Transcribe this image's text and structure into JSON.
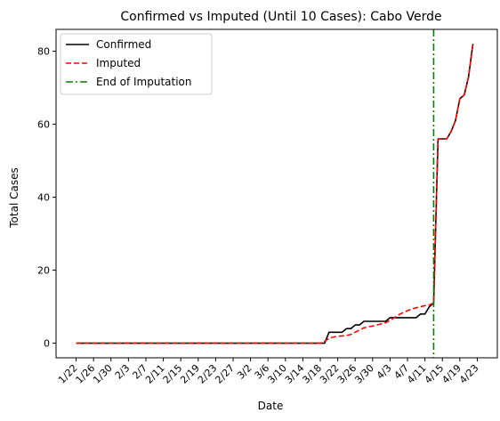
{
  "chart_data": {
    "type": "line",
    "title": "Confirmed vs Imputed (Until 10 Cases): Cabo Verde",
    "xlabel": "Date",
    "ylabel": "Total Cases",
    "x_start": "2020-01-22",
    "x_end": "2020-04-23",
    "xticks": [
      "1/22",
      "1/26",
      "1/30",
      "2/3",
      "2/7",
      "2/11",
      "2/15",
      "2/19",
      "2/23",
      "2/27",
      "3/2",
      "3/6",
      "3/10",
      "3/14",
      "3/18",
      "3/22",
      "3/26",
      "3/30",
      "4/3",
      "4/7",
      "4/11",
      "4/15",
      "4/19",
      "4/23"
    ],
    "yticks": [
      0,
      20,
      40,
      60,
      80
    ],
    "ylim": [
      -4,
      86
    ],
    "grid": false,
    "legend_position": "upper-left",
    "series": [
      {
        "name": "Confirmed",
        "color": "#000000",
        "style": "solid",
        "points": [
          [
            "2020-01-22",
            0
          ],
          [
            "2020-03-18",
            0
          ],
          [
            "2020-03-19",
            0
          ],
          [
            "2020-03-20",
            3
          ],
          [
            "2020-03-21",
            3
          ],
          [
            "2020-03-22",
            3
          ],
          [
            "2020-03-23",
            3
          ],
          [
            "2020-03-24",
            4
          ],
          [
            "2020-03-25",
            4
          ],
          [
            "2020-03-26",
            5
          ],
          [
            "2020-03-27",
            5
          ],
          [
            "2020-03-28",
            6
          ],
          [
            "2020-03-29",
            6
          ],
          [
            "2020-03-30",
            6
          ],
          [
            "2020-03-31",
            6
          ],
          [
            "2020-04-01",
            6
          ],
          [
            "2020-04-02",
            6
          ],
          [
            "2020-04-03",
            7
          ],
          [
            "2020-04-04",
            7
          ],
          [
            "2020-04-05",
            7
          ],
          [
            "2020-04-06",
            7
          ],
          [
            "2020-04-07",
            7
          ],
          [
            "2020-04-08",
            7
          ],
          [
            "2020-04-09",
            7
          ],
          [
            "2020-04-10",
            8
          ],
          [
            "2020-04-11",
            8
          ],
          [
            "2020-04-12",
            10
          ],
          [
            "2020-04-13",
            11
          ],
          [
            "2020-04-14",
            56
          ],
          [
            "2020-04-15",
            56
          ],
          [
            "2020-04-16",
            56
          ],
          [
            "2020-04-17",
            58
          ],
          [
            "2020-04-18",
            61
          ],
          [
            "2020-04-19",
            67
          ],
          [
            "2020-04-20",
            68
          ],
          [
            "2020-04-21",
            73
          ],
          [
            "2020-04-22",
            82
          ]
        ]
      },
      {
        "name": "Imputed",
        "color": "#ff0000",
        "style": "dashed",
        "points": [
          [
            "2020-01-22",
            0
          ],
          [
            "2020-03-18",
            0
          ],
          [
            "2020-03-19",
            0.5
          ],
          [
            "2020-03-20",
            1.3
          ],
          [
            "2020-03-21",
            1.7
          ],
          [
            "2020-03-22",
            1.9
          ],
          [
            "2020-03-23",
            2
          ],
          [
            "2020-03-24",
            2.1
          ],
          [
            "2020-03-25",
            2.4
          ],
          [
            "2020-03-26",
            3
          ],
          [
            "2020-03-27",
            3.6
          ],
          [
            "2020-03-28",
            4.2
          ],
          [
            "2020-03-29",
            4.5
          ],
          [
            "2020-03-30",
            4.7
          ],
          [
            "2020-03-31",
            5
          ],
          [
            "2020-04-01",
            5.3
          ],
          [
            "2020-04-02",
            5.6
          ],
          [
            "2020-04-03",
            6.3
          ],
          [
            "2020-04-04",
            7
          ],
          [
            "2020-04-05",
            7.8
          ],
          [
            "2020-04-06",
            8.4
          ],
          [
            "2020-04-07",
            8.9
          ],
          [
            "2020-04-08",
            9.4
          ],
          [
            "2020-04-09",
            9.7
          ],
          [
            "2020-04-10",
            10
          ],
          [
            "2020-04-11",
            10.3
          ],
          [
            "2020-04-12",
            10.5
          ],
          [
            "2020-04-13",
            11
          ],
          [
            "2020-04-14",
            56
          ],
          [
            "2020-04-15",
            56
          ],
          [
            "2020-04-16",
            56
          ],
          [
            "2020-04-17",
            58
          ],
          [
            "2020-04-18",
            61
          ],
          [
            "2020-04-19",
            67
          ],
          [
            "2020-04-20",
            68
          ],
          [
            "2020-04-21",
            73
          ],
          [
            "2020-04-22",
            82
          ]
        ]
      },
      {
        "name": "End of Imputation",
        "color": "#008000",
        "style": "dashdot",
        "vertical_line_at": "2020-04-13"
      }
    ]
  }
}
